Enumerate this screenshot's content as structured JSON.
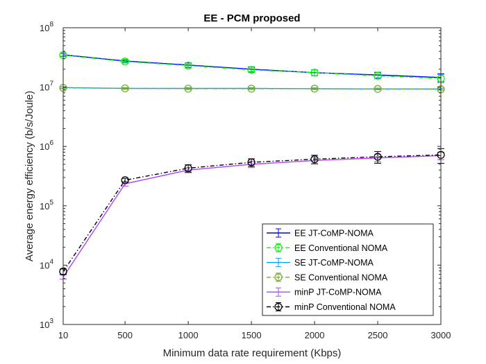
{
  "chart_data": {
    "type": "line",
    "title": "EE - PCM proposed",
    "xlabel": "Minimum data rate requirement (Kbps)",
    "ylabel": "Average energy efficiency (b/s/Joule)",
    "x": [
      10,
      500,
      1000,
      1500,
      2000,
      2500,
      3000
    ],
    "x_ticks": [
      "10",
      "500",
      "1000",
      "1500",
      "2000",
      "2500",
      "3000"
    ],
    "xlim": [
      10,
      3000
    ],
    "yscale": "log",
    "ylim": [
      1000,
      100000000
    ],
    "y_ticks": [
      {
        "base": "10",
        "exp": "3"
      },
      {
        "base": "10",
        "exp": "4"
      },
      {
        "base": "10",
        "exp": "5"
      },
      {
        "base": "10",
        "exp": "6"
      },
      {
        "base": "10",
        "exp": "7"
      },
      {
        "base": "10",
        "exp": "8"
      }
    ],
    "grid": false,
    "legend_position": "bottom-right",
    "series": [
      {
        "name": "EE JT-CoMP-NOMA",
        "color": "#0000ff",
        "dash": "solid",
        "marker": "none",
        "values": [
          35000000,
          27500000,
          23500000,
          20000000,
          17500000,
          16000000,
          14500000
        ],
        "errors": [
          2000000,
          1500000,
          2000000,
          2000000,
          2000000,
          1800000,
          2200000
        ]
      },
      {
        "name": "EE Conventional NOMA",
        "color": "#00ff00",
        "dash": "dashdot",
        "marker": "circle",
        "values": [
          34500000,
          27000000,
          23000000,
          19500000,
          17500000,
          15500000,
          14000000
        ],
        "errors": [
          2000000,
          1500000,
          2000000,
          2000000,
          2000000,
          1800000,
          2200000
        ]
      },
      {
        "name": "SE JT-CoMP-NOMA",
        "color": "#00a0ff",
        "dash": "solid",
        "marker": "none",
        "values": [
          9800000,
          9500000,
          9500000,
          9500000,
          9400000,
          9300000,
          9300000
        ],
        "errors": [
          300000,
          300000,
          300000,
          300000,
          300000,
          300000,
          300000
        ]
      },
      {
        "name": "SE Conventional NOMA",
        "color": "#77ac30",
        "dash": "dashdot",
        "marker": "circle",
        "values": [
          9700000,
          9500000,
          9400000,
          9400000,
          9400000,
          9300000,
          9200000
        ],
        "errors": [
          300000,
          300000,
          300000,
          300000,
          300000,
          300000,
          300000
        ]
      },
      {
        "name": "minP JT-CoMP-NOMA",
        "color": "#b040ff",
        "dash": "solid",
        "marker": "none",
        "values": [
          6300,
          235000,
          400000,
          500000,
          580000,
          640000,
          700000
        ],
        "errors": [
          500,
          20000,
          40000,
          60000,
          70000,
          90000,
          100000
        ]
      },
      {
        "name": "minP Conventional NOMA",
        "color": "#000000",
        "dash": "dashdot",
        "marker": "circle",
        "values": [
          7800,
          270000,
          430000,
          540000,
          610000,
          670000,
          720000
        ],
        "errors": [
          800,
          20000,
          60000,
          80000,
          100000,
          150000,
          200000
        ]
      }
    ]
  }
}
